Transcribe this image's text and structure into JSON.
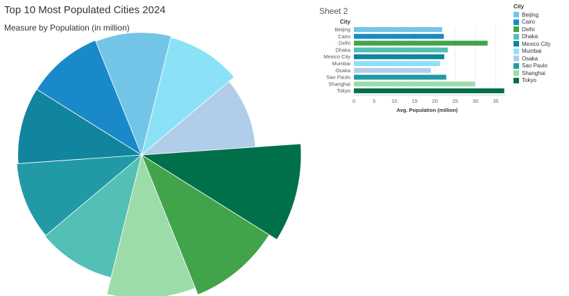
{
  "dashboard": {
    "title": "Top 10 Most Populated Cities 2024",
    "subtitle": "Measure by Population (in million)",
    "sheet2_title": "Sheet 2"
  },
  "legend": {
    "title": "City",
    "items": [
      {
        "label": "Beijing",
        "color": "#73c5e8"
      },
      {
        "label": "Cairo",
        "color": "#1a89c9"
      },
      {
        "label": "Delhi",
        "color": "#42a44a"
      },
      {
        "label": "Dhaka",
        "color": "#52c0b4"
      },
      {
        "label": "Mexico City",
        "color": "#11849e"
      },
      {
        "label": "Mumbai",
        "color": "#8be2f7"
      },
      {
        "label": "Osaka",
        "color": "#b1cdea"
      },
      {
        "label": "Sao Paulo",
        "color": "#219aa6"
      },
      {
        "label": "Shanghai",
        "color": "#9cdcaa"
      },
      {
        "label": "Tokyo",
        "color": "#00704a"
      }
    ]
  },
  "chart_data": [
    {
      "type": "pie",
      "categories": [
        "Tokyo",
        "Delhi",
        "Shanghai",
        "Dhaka",
        "Sao Paulo",
        "Mexico City",
        "Cairo",
        "Beijing",
        "Mumbai",
        "Osaka"
      ],
      "values": [
        37.1,
        33.0,
        29.9,
        23.2,
        22.8,
        22.3,
        22.2,
        21.8,
        21.3,
        19.0
      ],
      "colors": [
        "#00704a",
        "#42a44a",
        "#9cdcaa",
        "#52c0b4",
        "#219aa6",
        "#11849e",
        "#1a89c9",
        "#73c5e8",
        "#8be2f7",
        "#b1cdea"
      ],
      "title": "Top 10 Most Populated Cities 2024",
      "subtitle": "Measure by Population (in million)"
    },
    {
      "type": "bar",
      "orientation": "horizontal",
      "title": "Sheet 2",
      "categories_header": "City",
      "categories": [
        "Beijing",
        "Cairo",
        "Delhi",
        "Dhaka",
        "Mexico City",
        "Mumbai",
        "Osaka",
        "Sao Paulo",
        "Shanghai",
        "Tokyo"
      ],
      "values": [
        21.8,
        22.2,
        33.0,
        23.2,
        22.3,
        21.3,
        19.0,
        22.8,
        29.9,
        37.1
      ],
      "colors": [
        "#73c5e8",
        "#1a89c9",
        "#42a44a",
        "#52c0b4",
        "#11849e",
        "#8be2f7",
        "#b1cdea",
        "#219aa6",
        "#9cdcaa",
        "#00704a"
      ],
      "xlabel": "Avg. Population (million)",
      "xlim": [
        0,
        37.5
      ],
      "xticks": [
        0,
        5,
        10,
        15,
        20,
        25,
        30,
        35
      ],
      "grid": true
    }
  ]
}
